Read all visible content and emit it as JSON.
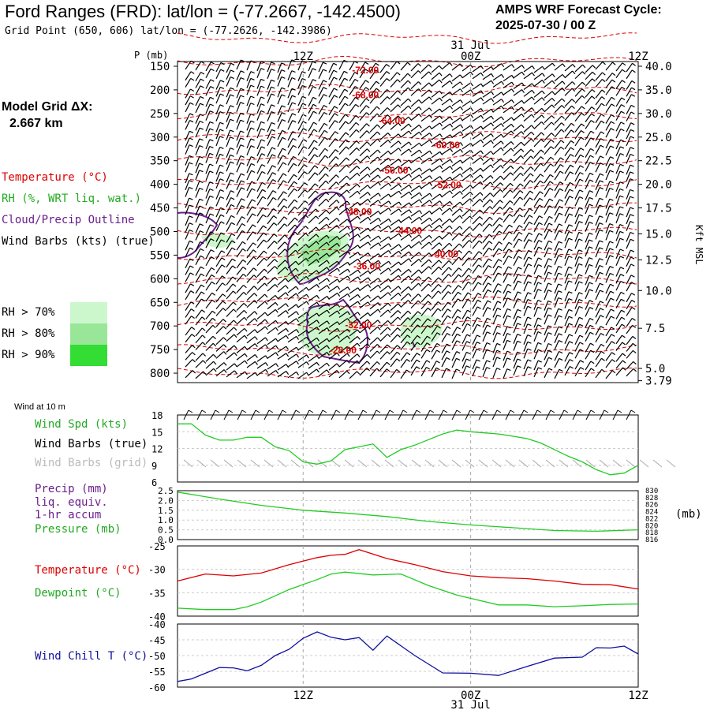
{
  "header": {
    "title": "Ford Ranges (FRD):  lat/lon = (-77.2667, -142.4500)",
    "grid_point": "Grid Point (650, 606) lat/lon = (-77.2626, -142.3986)",
    "cycle_title": "AMPS WRF Forecast Cycle:",
    "cycle_value": "2025-07-30 / 00  Z"
  },
  "model_grid": {
    "label": "Model Grid ΔX:",
    "value": "2.667 km"
  },
  "legend": {
    "temperature": "Temperature (°C)",
    "rh": "RH (%, WRT liq. wat.)",
    "cloud": "Cloud/Precip Outline",
    "wind": "Wind Barbs (kts) (true)",
    "rh_levels": [
      {
        "label": "RH > 70%",
        "color": "#ccf7cc"
      },
      {
        "label": "RH > 80%",
        "color": "#99e699"
      },
      {
        "label": "RH > 90%",
        "color": "#33dd33"
      }
    ]
  },
  "colors": {
    "temperature": "#dd0000",
    "dewpoint": "#22cc22",
    "cloud": "#6a1e8c",
    "windchill": "#1010a0",
    "wind_speed": "#22cc22",
    "grid_barbs": "#aaaaaa"
  },
  "time_axis": {
    "date_label": "31 Jul",
    "ticks": [
      {
        "hour": 12,
        "label": "12Z"
      },
      {
        "hour": 24,
        "label": "00Z"
      },
      {
        "hour": 36,
        "label": "12Z"
      }
    ],
    "range_hours": [
      3,
      36
    ]
  },
  "chart_data": [
    {
      "type": "heatmap",
      "panel": "cross-section",
      "ylabel": "P (mb)",
      "right_label": "Kft MSL",
      "pressure_ticks": [
        "150",
        "200",
        "250",
        "300",
        "350",
        "400",
        "450",
        "500",
        "550",
        "600",
        "650",
        "700",
        "750",
        "800"
      ],
      "height_ticks": [
        {
          "p": 150,
          "label": "40.0"
        },
        {
          "p": 200,
          "label": "35.0"
        },
        {
          "p": 250,
          "label": "30.0"
        },
        {
          "p": 300,
          "label": "25.0"
        },
        {
          "p": 350,
          "label": "22.5"
        },
        {
          "p": 400,
          "label": "20.0"
        },
        {
          "p": 450,
          "label": "17.5"
        },
        {
          "p": 505,
          "label": "15.0"
        },
        {
          "p": 560,
          "label": "12.5"
        },
        {
          "p": 625,
          "label": "10.0"
        },
        {
          "p": 705,
          "label": "7.5"
        },
        {
          "p": 790,
          "label": "5.0"
        },
        {
          "p": 816,
          "label": "3.79"
        }
      ],
      "p_range": [
        140,
        820
      ],
      "isotherm_labels": [
        {
          "text": "-72.00",
          "hour": 15.5,
          "p": 165
        },
        {
          "text": "-68.00",
          "hour": 15.5,
          "p": 218
        },
        {
          "text": "-64.00",
          "hour": 17.4,
          "p": 272
        },
        {
          "text": "-60.00",
          "hour": 21.3,
          "p": 324
        },
        {
          "text": "-56.00",
          "hour": 17.6,
          "p": 377
        },
        {
          "text": "-52.00",
          "hour": 21.4,
          "p": 408
        },
        {
          "text": "-48.00",
          "hour": 15.0,
          "p": 465
        },
        {
          "text": "-44.00",
          "hour": 18.6,
          "p": 505
        },
        {
          "text": "-40.00",
          "hour": 21.2,
          "p": 554
        },
        {
          "text": "-36.00",
          "hour": 15.6,
          "p": 580
        },
        {
          "text": "-32.00",
          "hour": 15.0,
          "p": 705
        },
        {
          "text": "-28.00",
          "hour": 13.9,
          "p": 758
        }
      ]
    },
    {
      "type": "line",
      "panel": "wind",
      "title": "Wind at 10 m",
      "ylim": [
        6,
        18
      ],
      "yticks": [
        18,
        15,
        12,
        9,
        6
      ],
      "labels": {
        "speed": "Wind Spd (kts)",
        "barbs_true": "Wind Barbs (true)",
        "barbs_grid": "Wind Barbs (grid)"
      },
      "series": [
        {
          "name": "Wind Spd (kts)",
          "x": [
            3,
            4,
            5,
            6,
            7,
            8,
            9,
            10,
            11,
            12,
            13,
            14,
            15,
            16,
            17,
            18,
            19,
            20,
            21,
            22,
            23,
            24,
            25,
            26,
            27,
            28,
            29,
            30,
            31,
            32,
            33,
            34,
            35,
            36
          ],
          "y": [
            16.4,
            16.4,
            14.4,
            13.5,
            13.5,
            14.0,
            14.0,
            12.3,
            11.6,
            9.6,
            9.2,
            9.8,
            11.8,
            12.3,
            12.8,
            10.4,
            11.8,
            12.6,
            13.6,
            14.6,
            15.3,
            15.0,
            14.8,
            14.6,
            14.2,
            13.8,
            13.0,
            11.8,
            10.6,
            9.6,
            8.2,
            7.3,
            7.6,
            9.0
          ]
        }
      ]
    },
    {
      "type": "line",
      "panel": "precip-pressure",
      "ylim": [
        0,
        2.5
      ],
      "yticks": [
        "2.5",
        "2.0",
        "1.5",
        "1.0",
        "0.5",
        "0.0"
      ],
      "right_ticks": [
        "830",
        "828",
        "826",
        "824",
        "822",
        "820",
        "818",
        "816"
      ],
      "right_range": [
        816,
        830
      ],
      "right_unit": "(mb)",
      "labels": {
        "precip": "Precip (mm)",
        "liq": "liq. equiv.",
        "accum": "1-hr accum",
        "pressure": "Pressure (mb)"
      },
      "series": [
        {
          "name": "Pressure (mb)",
          "x": [
            3,
            6,
            9,
            12,
            15,
            18,
            21,
            24,
            27,
            30,
            33,
            36
          ],
          "y": [
            829.6,
            827.6,
            825.8,
            824.4,
            823.6,
            822.6,
            821.2,
            820.2,
            819.4,
            818.6,
            818.4,
            818.8
          ]
        }
      ]
    },
    {
      "type": "line",
      "panel": "temperature",
      "ylim": [
        -40,
        -25
      ],
      "yticks": [
        "-25",
        "-30",
        "-35",
        "-40"
      ],
      "labels": {
        "temperature": "Temperature (°C)",
        "dewpoint": "Dewpoint (°C)"
      },
      "series": [
        {
          "name": "Temperature (°C)",
          "x": [
            3,
            5,
            7,
            9,
            11,
            13,
            14,
            15,
            16,
            18,
            20,
            22,
            24,
            26,
            28,
            30,
            32,
            34,
            36
          ],
          "y": [
            -32.5,
            -31.0,
            -31.4,
            -30.8,
            -29.0,
            -27.5,
            -27.0,
            -26.8,
            -25.8,
            -27.7,
            -29.0,
            -30.5,
            -31.4,
            -31.8,
            -32.0,
            -32.5,
            -33.2,
            -33.3,
            -34.2
          ]
        },
        {
          "name": "Dewpoint (°C)",
          "x": [
            3,
            5,
            7,
            8,
            9,
            11,
            13,
            14,
            15,
            17,
            19,
            21,
            23,
            26,
            28,
            30,
            32,
            34,
            36
          ],
          "y": [
            -38.3,
            -38.6,
            -38.6,
            -38.0,
            -37.0,
            -34.3,
            -32.2,
            -31.0,
            -30.6,
            -31.2,
            -31.0,
            -33.5,
            -35.5,
            -37.6,
            -37.6,
            -38.0,
            -37.8,
            -37.5,
            -37.4
          ]
        }
      ]
    },
    {
      "type": "line",
      "panel": "windchill",
      "ylim": [
        -60,
        -40
      ],
      "yticks": [
        "-40",
        "-45",
        "-50",
        "-55",
        "-60"
      ],
      "labels": {
        "windchill": "Wind Chill T (°C)"
      },
      "series": [
        {
          "name": "Wind Chill T (°C)",
          "x": [
            3,
            4,
            6,
            7,
            8,
            9,
            10,
            11,
            12,
            13,
            14,
            15,
            16,
            17,
            18,
            20,
            22,
            24,
            26,
            28,
            30,
            32,
            33,
            34,
            35,
            36
          ],
          "y": [
            -58.2,
            -57.4,
            -53.8,
            -53.9,
            -54.8,
            -53.1,
            -50.0,
            -48.0,
            -44.5,
            -42.5,
            -44.2,
            -45.0,
            -44.3,
            -48.3,
            -43.8,
            -50.0,
            -55.5,
            -55.6,
            -56.3,
            -53.5,
            -50.8,
            -50.5,
            -47.5,
            -47.6,
            -47.0,
            -49.5
          ]
        }
      ]
    }
  ]
}
